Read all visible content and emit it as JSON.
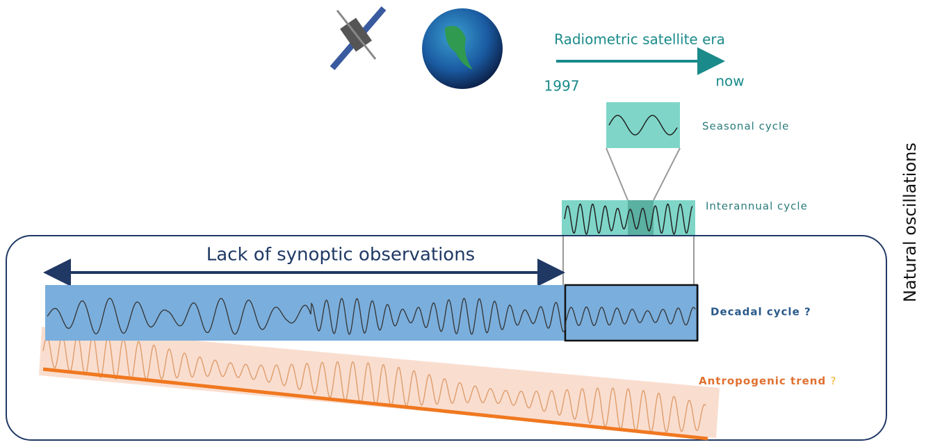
{
  "header": {
    "arrow_label": "Radiometric satellite era",
    "start": "1997",
    "end": "now"
  },
  "panels": [
    {
      "label": "Seasonal cycle"
    },
    {
      "label": "Interannual cycle"
    },
    {
      "label": "Decadal cycle ?"
    }
  ],
  "trend": {
    "label": "Antropogenic trend",
    "mark": "?"
  },
  "gap": {
    "label": "Lack of synoptic observations"
  },
  "side_label": "Natural oscillations"
}
